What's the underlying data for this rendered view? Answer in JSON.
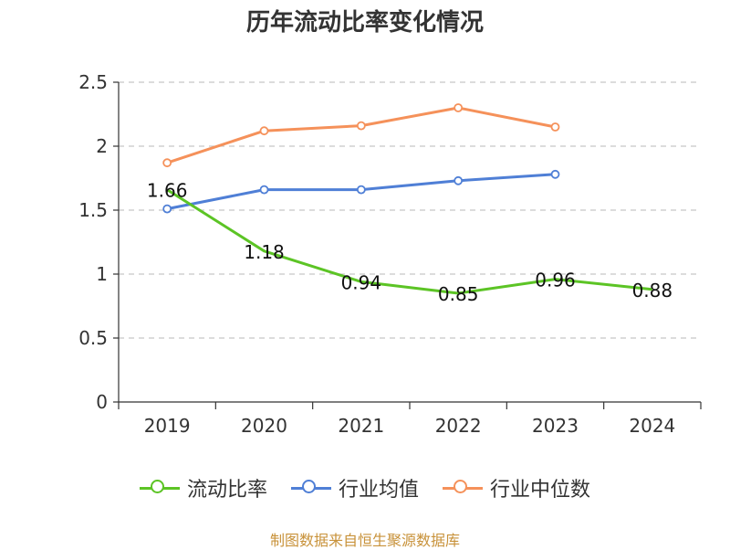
{
  "chart_data": {
    "type": "line",
    "title": "历年流动比率变化情况",
    "categories": [
      "2019",
      "2020",
      "2021",
      "2022",
      "2023",
      "2024"
    ],
    "ylim": [
      0,
      2.5
    ],
    "yticks": [
      "0",
      "0.5",
      "1",
      "1.5",
      "2",
      "2.5"
    ],
    "grid": true,
    "legend_position": "bottom",
    "series": [
      {
        "name": "流动比率",
        "color": "#5cc425",
        "values": [
          1.66,
          1.18,
          0.94,
          0.85,
          0.96,
          0.88
        ],
        "labels": [
          "1.66",
          "1.18",
          "0.94",
          "0.85",
          "0.96",
          "0.88"
        ]
      },
      {
        "name": "行业均值",
        "color": "#4f7fd6",
        "values": [
          1.51,
          1.66,
          1.66,
          1.73,
          1.78,
          null
        ]
      },
      {
        "name": "行业中位数",
        "color": "#f5915a",
        "values": [
          1.87,
          2.12,
          2.16,
          2.3,
          2.15,
          null
        ]
      }
    ]
  },
  "source_note": "制图数据来自恒生聚源数据库"
}
